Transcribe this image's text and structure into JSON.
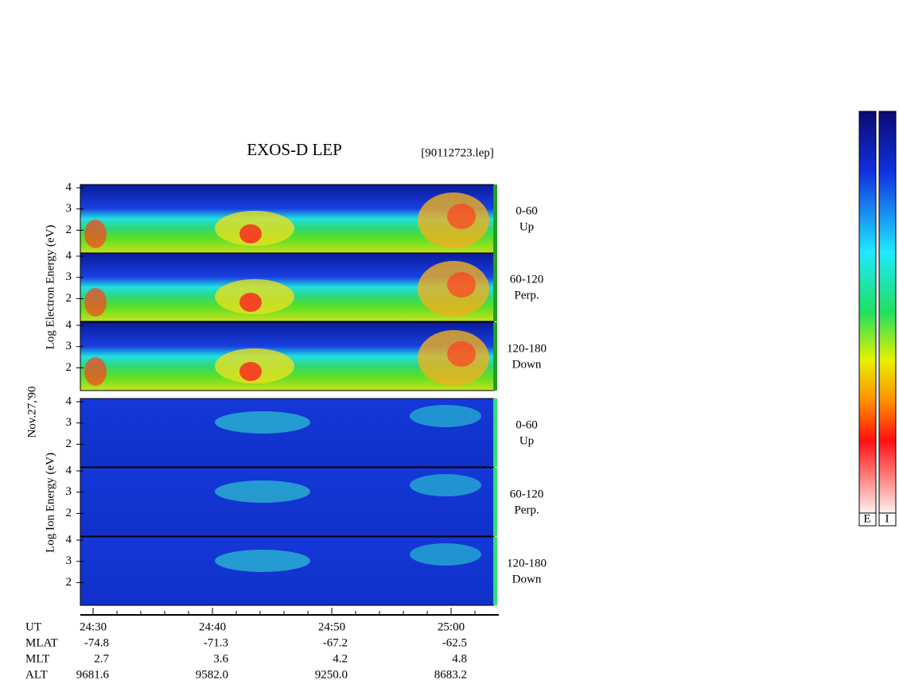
{
  "chart_data": {
    "type": "spectrogram",
    "title": "EXOS-D LEP",
    "filename": "[90112723.lep]",
    "axis_labels": {
      "electron": "Log Electron Energy (eV)",
      "date": "Nov.27,'90",
      "ion": "Log Ion Energy (eV)"
    },
    "panels": [
      {
        "species": "electron",
        "pitch": "0-60",
        "direction": "Up"
      },
      {
        "species": "electron",
        "pitch": "60-120",
        "direction": "Perp."
      },
      {
        "species": "electron",
        "pitch": "120-180",
        "direction": "Down"
      },
      {
        "species": "ion",
        "pitch": "0-60",
        "direction": "Up"
      },
      {
        "species": "ion",
        "pitch": "60-120",
        "direction": "Perp."
      },
      {
        "species": "ion",
        "pitch": "120-180",
        "direction": "Down"
      }
    ],
    "ylim": [
      0.93,
      4.15
    ],
    "yticks": [
      2,
      3,
      4
    ],
    "xlim": [
      28.93,
      64.0
    ],
    "xlabel": "UT",
    "xticks": [
      {
        "value": 30,
        "label": "24:30"
      },
      {
        "value": 40,
        "label": "24:40"
      },
      {
        "value": 50,
        "label": "24:50"
      },
      {
        "value": 60,
        "label": "25:00"
      }
    ],
    "ephemeris": [
      {
        "label": "MLAT",
        "values": [
          "-74.8",
          "-71.3",
          "-67.2",
          "-62.5"
        ]
      },
      {
        "label": "MLT",
        "values": [
          "2.7",
          "3.6",
          "4.2",
          "4.8"
        ]
      },
      {
        "label": "ALT",
        "values": [
          "9681.6",
          "9582.0",
          "9250.0",
          "8683.2"
        ]
      }
    ],
    "colorbars": [
      "E",
      "I"
    ]
  }
}
